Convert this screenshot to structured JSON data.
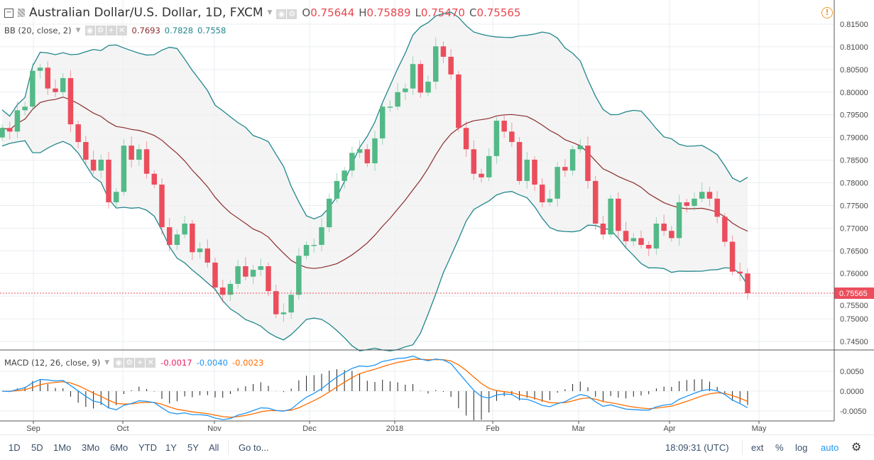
{
  "header": {
    "symbol_title": "Australian Dollar/U.S. Dollar, 1D, FXCM",
    "ohlc": [
      {
        "label": "O",
        "value": "0.75644"
      },
      {
        "label": "H",
        "value": "0.75889"
      },
      {
        "label": "L",
        "value": "0.75470"
      },
      {
        "label": "C",
        "value": "0.75565"
      }
    ]
  },
  "indicators": {
    "bb": {
      "label": "BB (20, close, 2)",
      "basis": "0.7693",
      "upper": "0.7828",
      "lower": "0.7558"
    },
    "macd": {
      "label": "MACD (12, 26, close, 9)",
      "histogram": "-0.0017",
      "macd": "-0.0040",
      "signal": "-0.0023"
    }
  },
  "toolbar": {
    "ranges": [
      "1D",
      "5D",
      "1Mo",
      "3Mo",
      "6Mo",
      "YTD",
      "1Y",
      "5Y",
      "All"
    ],
    "goto": "Go to...",
    "clock": "18:09:31 (UTC)",
    "ext": "ext",
    "percent": "%",
    "log": "log",
    "auto": "auto"
  },
  "colors": {
    "up": "#53b987",
    "down": "#eb4d5c",
    "band": "#21868c",
    "basis": "#8b2d2d",
    "macd": "#2196f3",
    "signal": "#ff6d00",
    "price_label": "#eb4d5c"
  },
  "icons": [
    "collapse-icon",
    "eye-icon",
    "gear-icon",
    "plus-icon",
    "close-icon",
    "warning-icon",
    "settings-gear-icon"
  ],
  "chart_data": [
    {
      "type": "candlestick",
      "x_ticks": [
        "Sep",
        "Oct",
        "Nov",
        "Dec",
        "2018",
        "Feb",
        "Mar",
        "Apr",
        "May"
      ],
      "y_ticks": [
        "0.81500",
        "0.81000",
        "0.80500",
        "0.80000",
        "0.79500",
        "0.79000",
        "0.78500",
        "0.78000",
        "0.77500",
        "0.77000",
        "0.76500",
        "0.76000",
        "0.75500",
        "0.75000",
        "0.74500"
      ],
      "ylim": [
        0.745,
        0.815
      ],
      "last_price": "0.75565",
      "first_open": 0.79,
      "closes": [
        0.7921,
        0.7913,
        0.796,
        0.7968,
        0.8047,
        0.8054,
        0.8008,
        0.8,
        0.8031,
        0.7929,
        0.789,
        0.7851,
        0.7827,
        0.7851,
        0.7757,
        0.778,
        0.7882,
        0.7851,
        0.7874,
        0.782,
        0.7796,
        0.7702,
        0.7663,
        0.7686,
        0.771,
        0.7647,
        0.7655,
        0.7624,
        0.7569,
        0.7553,
        0.7577,
        0.7616,
        0.7593,
        0.7608,
        0.7616,
        0.7561,
        0.751,
        0.7514,
        0.7553,
        0.7639,
        0.7663,
        0.7663,
        0.7702,
        0.7765,
        0.7804,
        0.7827,
        0.7866,
        0.7874,
        0.7843,
        0.7898,
        0.7968,
        0.7968,
        0.8,
        0.8008,
        0.8062,
        0.7999,
        0.8023,
        0.8101,
        0.8078,
        0.8039,
        0.7921,
        0.7874,
        0.782,
        0.7812,
        0.7859,
        0.7937,
        0.7913,
        0.789,
        0.7804,
        0.7851,
        0.7796,
        0.7757,
        0.7765,
        0.7835,
        0.7827,
        0.7874,
        0.7882,
        0.7804,
        0.771,
        0.7686,
        0.7765,
        0.7694,
        0.7671,
        0.7678,
        0.7663,
        0.7655,
        0.771,
        0.7694,
        0.7678,
        0.7757,
        0.7749,
        0.7765,
        0.778,
        0.7765,
        0.7725,
        0.767,
        0.7604,
        0.76,
        0.75565
      ],
      "grid": true
    },
    {
      "type": "line",
      "name": "MACD",
      "y_ticks": [
        "0.0050",
        "0.0000",
        "-0.0050"
      ],
      "ylim": [
        -0.0075,
        0.0095
      ]
    }
  ]
}
